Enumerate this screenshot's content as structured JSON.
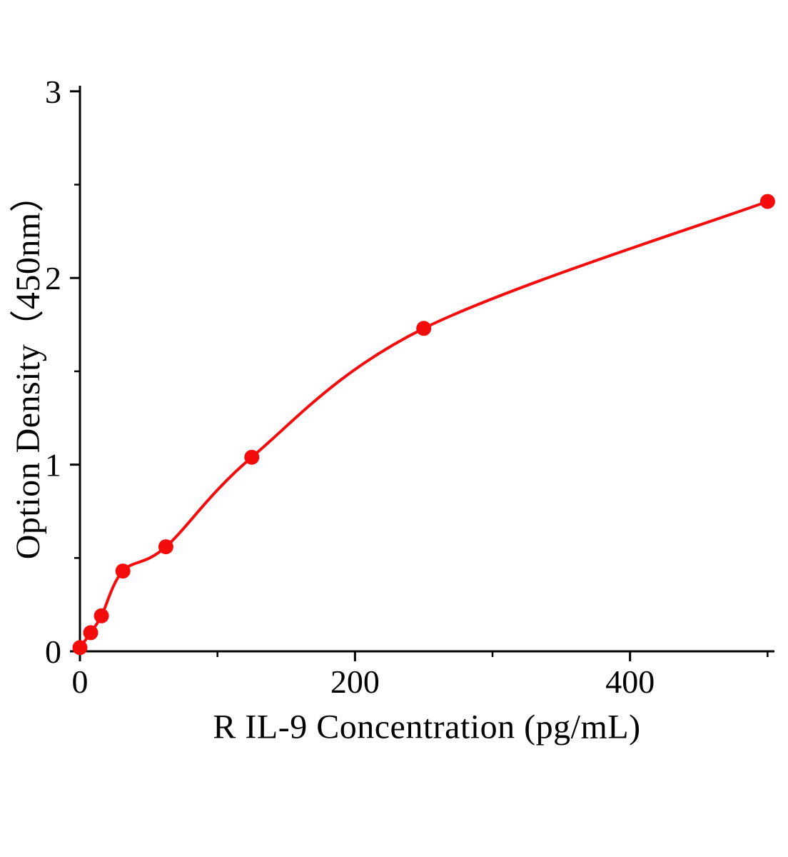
{
  "background_color": "#ffffff",
  "accent_color": "#f40b0b",
  "chart_data": {
    "type": "scatter",
    "mode": "scatter-with-fit-curve",
    "title": "",
    "xlabel": "R IL-9 Concentration (pg/mL)",
    "ylabel": "Option Density（450nm）",
    "x": [
      0,
      7.8,
      15.6,
      31.25,
      62.5,
      125,
      250,
      500
    ],
    "y": [
      0.02,
      0.1,
      0.19,
      0.43,
      0.56,
      1.04,
      1.73,
      2.41
    ],
    "xlim": [
      0,
      505
    ],
    "ylim": [
      0,
      3.03
    ],
    "x_major_ticks": [
      0,
      200,
      400
    ],
    "x_minor_ticks": [
      100,
      300,
      500
    ],
    "y_major_ticks": [
      0,
      1,
      2,
      3
    ],
    "y_minor_ticks": [
      0.5,
      1.5,
      2.5
    ],
    "point_color": "#f40b0b",
    "line_color": "#f40b0b",
    "axis_color": "#000000",
    "grid": false,
    "legend": null
  }
}
